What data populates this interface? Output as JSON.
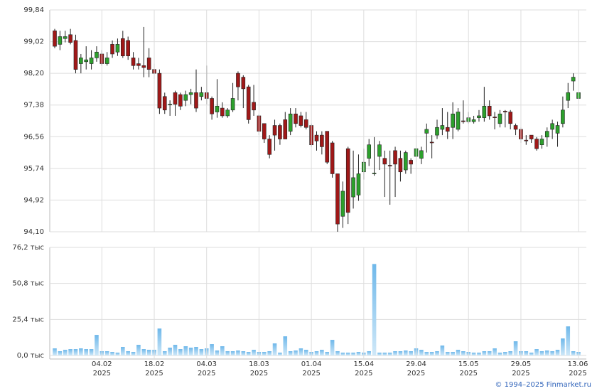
{
  "chart_data": [
    {
      "type": "candlestick",
      "open": [
        99.3,
        98.95,
        99.1,
        99.2,
        99.05,
        98.45,
        98.5,
        98.45,
        98.6,
        98.7,
        98.45,
        98.95,
        98.75,
        99.1,
        99.05,
        98.6,
        98.45,
        98.4,
        98.6,
        98.3,
        98.2,
        97.6,
        97.4,
        97.7,
        97.65,
        97.5,
        97.65,
        97.7,
        97.6,
        97.7,
        97.55,
        97.2,
        97.3,
        97.1,
        97.25,
        98.2,
        98.1,
        97.85,
        97.45,
        97.1,
        96.9,
        96.5,
        96.85,
        96.85,
        97.0,
        96.7,
        97.15,
        97.1,
        97.0,
        96.85,
        96.6,
        96.6,
        96.7,
        96.4,
        95.6,
        94.5,
        96.25,
        95.0,
        95.05,
        95.65,
        96.0,
        95.6,
        96.05,
        96.0,
        95.82,
        96.2,
        96.0,
        95.7,
        95.95,
        96.05,
        96.0,
        96.65,
        96.42,
        96.6,
        96.75,
        96.8,
        96.8,
        96.75,
        96.97,
        96.95,
        96.95,
        97.05,
        97.05,
        97.35,
        97.07,
        96.9,
        97.22,
        97.2,
        96.85,
        96.75,
        96.47,
        96.6,
        96.5,
        96.35,
        96.55,
        96.75,
        96.65,
        96.9,
        97.5,
        98.0,
        97.55
      ],
      "high": [
        99.35,
        99.3,
        99.3,
        99.35,
        99.2,
        98.7,
        98.9,
        98.8,
        98.9,
        98.8,
        98.75,
        99.05,
        99.1,
        99.3,
        99.15,
        98.75,
        98.6,
        99.4,
        98.85,
        98.45,
        98.3,
        97.7,
        97.5,
        97.75,
        97.7,
        97.75,
        97.8,
        98.3,
        97.85,
        98.4,
        97.6,
        98.05,
        97.45,
        97.3,
        97.95,
        98.25,
        98.15,
        97.9,
        97.9,
        97.15,
        96.9,
        96.6,
        97.0,
        96.9,
        97.2,
        97.3,
        97.3,
        97.2,
        97.2,
        96.9,
        96.7,
        96.7,
        96.7,
        96.45,
        95.6,
        95.4,
        96.3,
        96.2,
        96.1,
        96.25,
        96.5,
        96.55,
        96.45,
        96.2,
        96.2,
        96.3,
        96.2,
        96.2,
        96.0,
        96.6,
        96.3,
        96.9,
        96.6,
        97.0,
        97.3,
        97.2,
        97.45,
        97.3,
        97.5,
        97.2,
        97.1,
        97.25,
        97.85,
        97.5,
        97.2,
        97.25,
        97.25,
        97.25,
        96.9,
        96.8,
        96.6,
        96.6,
        96.55,
        96.6,
        96.8,
        97.0,
        96.95,
        97.6,
        97.95,
        98.2,
        98.2
      ],
      "low": [
        98.85,
        98.8,
        99.0,
        98.95,
        98.2,
        98.2,
        98.3,
        98.3,
        98.5,
        98.4,
        98.4,
        98.6,
        98.65,
        98.6,
        98.55,
        98.3,
        98.3,
        98.1,
        98.1,
        98.05,
        97.15,
        97.15,
        97.1,
        97.1,
        97.25,
        97.35,
        97.4,
        97.2,
        97.5,
        97.4,
        97.0,
        97.05,
        97.05,
        97.05,
        97.2,
        97.5,
        97.3,
        96.9,
        97.1,
        96.6,
        96.4,
        96.0,
        96.2,
        96.35,
        96.5,
        96.6,
        96.8,
        96.8,
        96.75,
        96.3,
        96.2,
        96.1,
        95.85,
        95.5,
        94.1,
        94.2,
        94.3,
        94.7,
        94.9,
        95.45,
        95.8,
        95.55,
        95.7,
        95.0,
        94.8,
        95.0,
        95.4,
        95.6,
        95.6,
        95.9,
        95.85,
        96.15,
        96.0,
        96.5,
        96.6,
        96.5,
        96.5,
        96.7,
        96.9,
        96.9,
        96.9,
        96.95,
        96.95,
        97.0,
        96.75,
        96.8,
        96.8,
        96.75,
        96.6,
        96.4,
        96.35,
        96.4,
        96.2,
        96.25,
        96.3,
        96.5,
        96.3,
        96.8,
        97.3,
        97.75,
        97.3
      ],
      "close": [
        98.9,
        99.15,
        99.15,
        99.0,
        98.3,
        98.6,
        98.55,
        98.6,
        98.75,
        98.45,
        98.6,
        98.7,
        98.95,
        98.65,
        98.65,
        98.4,
        98.4,
        98.35,
        98.3,
        98.2,
        97.3,
        97.25,
        97.4,
        97.4,
        97.35,
        97.65,
        97.7,
        97.3,
        97.7,
        97.55,
        97.15,
        97.35,
        97.1,
        97.25,
        97.55,
        97.85,
        97.8,
        97.0,
        97.25,
        96.7,
        96.5,
        96.1,
        96.6,
        96.5,
        96.5,
        97.15,
        96.9,
        96.85,
        96.8,
        96.35,
        96.45,
        96.3,
        95.9,
        95.6,
        94.3,
        95.15,
        94.6,
        95.5,
        95.6,
        95.9,
        96.35,
        95.62,
        96.35,
        95.85,
        95.8,
        95.85,
        95.65,
        96.15,
        95.85,
        96.25,
        96.2,
        96.75,
        96.4,
        96.8,
        96.85,
        96.7,
        97.15,
        97.2,
        96.95,
        97.05,
        97.0,
        97.1,
        97.35,
        97.1,
        97.05,
        97.15,
        97.2,
        96.9,
        96.75,
        96.5,
        96.45,
        96.5,
        96.25,
        96.5,
        96.7,
        96.9,
        96.85,
        97.25,
        97.7,
        98.1,
        97.7
      ],
      "up_color": "#2ca02c",
      "down_color": "#a01818",
      "ylim": [
        94.1,
        99.84
      ],
      "yticks": [
        {
          "value": 94.1,
          "label": "94,10"
        },
        {
          "value": 94.92,
          "label": "94,92"
        },
        {
          "value": 95.74,
          "label": "95,74"
        },
        {
          "value": 96.56,
          "label": "96,56"
        },
        {
          "value": 97.38,
          "label": "97,38"
        },
        {
          "value": 98.2,
          "label": "98,20"
        },
        {
          "value": 99.02,
          "label": "99,02"
        },
        {
          "value": 99.84,
          "label": "99,84"
        }
      ],
      "grid": true
    },
    {
      "type": "bar",
      "categories": [
        null,
        null,
        null,
        null,
        null,
        null,
        null,
        null,
        null,
        "04.02\n2025",
        null,
        null,
        null,
        null,
        null,
        null,
        null,
        null,
        null,
        "18.02\n2025",
        null,
        null,
        null,
        null,
        null,
        null,
        null,
        null,
        null,
        "04.03\n2025",
        null,
        null,
        null,
        null,
        null,
        null,
        null,
        null,
        null,
        "18.03\n2025",
        null,
        null,
        null,
        null,
        null,
        null,
        null,
        null,
        null,
        "01.04\n2025",
        null,
        null,
        null,
        null,
        null,
        null,
        null,
        null,
        null,
        "15.04\n2025",
        null,
        null,
        null,
        null,
        null,
        null,
        null,
        null,
        null,
        "29.04\n2025",
        null,
        null,
        null,
        null,
        null,
        null,
        null,
        null,
        null,
        "15.05\n2025",
        null,
        null,
        null,
        null,
        null,
        null,
        null,
        null,
        null,
        "29.05\n2025",
        null,
        null,
        null,
        null,
        null,
        null,
        null,
        null,
        null,
        null,
        "13.06\n2025"
      ],
      "values": [
        5,
        3,
        4,
        4.5,
        4.5,
        5,
        4.5,
        4.5,
        14.5,
        3,
        3,
        2.5,
        2,
        6,
        3,
        2.5,
        7.5,
        4.5,
        4,
        4,
        19,
        3,
        5.5,
        7.5,
        4.5,
        6.5,
        5.5,
        6,
        4.5,
        5,
        8,
        3.5,
        6.5,
        3,
        3,
        3.5,
        3,
        2.5,
        4,
        2.5,
        2.5,
        3,
        8.5,
        2,
        13.5,
        3,
        3.5,
        5,
        4,
        2.5,
        3,
        4,
        2.5,
        11,
        3,
        2,
        2,
        2,
        2.5,
        2,
        3,
        64.5,
        2,
        2,
        2,
        3,
        3,
        3.5,
        3,
        5,
        4,
        2.5,
        2.5,
        3,
        7,
        2.5,
        2.5,
        4,
        3,
        2.5,
        2,
        2,
        3,
        3,
        5,
        2,
        2.5,
        3,
        10,
        3,
        3,
        2,
        4.5,
        3,
        3.5,
        3,
        4,
        12,
        20.5,
        3,
        2.5
      ],
      "color": "#8cc8ef",
      "ylim": [
        0,
        76.2
      ],
      "yticks": [
        {
          "value": 0,
          "label": "0,0 тыс"
        },
        {
          "value": 25.4,
          "label": "25,4 тыс"
        },
        {
          "value": 50.8,
          "label": "50,8 тыс"
        },
        {
          "value": 76.2,
          "label": "76,2 тыс"
        }
      ],
      "grid": true
    }
  ],
  "footer": "© 1994–2025 Finmarket.ru"
}
